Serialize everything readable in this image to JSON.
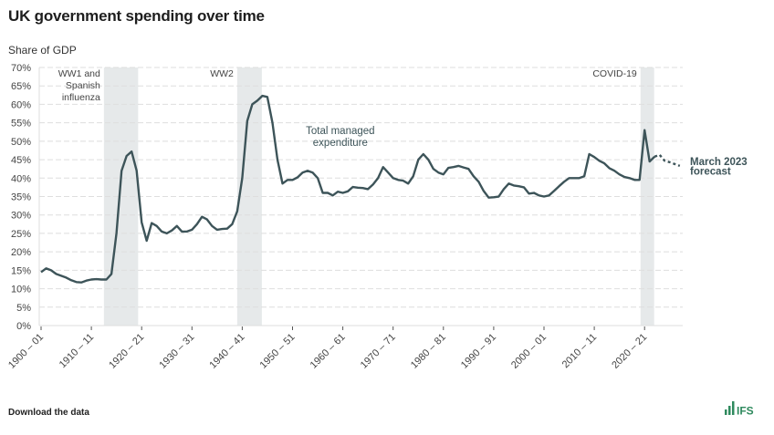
{
  "header": {
    "title": "UK government spending over time"
  },
  "footer": {
    "download_label": "Download the data",
    "logo_text": "IFS"
  },
  "colors": {
    "line": "#3d5459",
    "shade": "#e6e9ea",
    "grid": "#dedede",
    "logo": "#2f8a5e"
  },
  "chart_data": {
    "type": "line",
    "title": "UK government spending over time",
    "ylabel": "Share of GDP",
    "xlabel": "",
    "ylim": [
      0,
      70
    ],
    "y_ticks": [
      "0%",
      "5%",
      "10%",
      "15%",
      "20%",
      "25%",
      "30%",
      "35%",
      "40%",
      "45%",
      "50%",
      "55%",
      "60%",
      "65%",
      "70%"
    ],
    "x_ticks": [
      {
        "year": 1900,
        "label": "1900 – 01"
      },
      {
        "year": 1910,
        "label": "1910 – 11"
      },
      {
        "year": 1920,
        "label": "1920 – 21"
      },
      {
        "year": 1930,
        "label": "1930 – 31"
      },
      {
        "year": 1940,
        "label": "1940 – 41"
      },
      {
        "year": 1950,
        "label": "1950 – 51"
      },
      {
        "year": 1960,
        "label": "1960 – 61"
      },
      {
        "year": 1970,
        "label": "1970 – 71"
      },
      {
        "year": 1980,
        "label": "1980 – 81"
      },
      {
        "year": 1990,
        "label": "1990 – 91"
      },
      {
        "year": 2000,
        "label": "2000 – 01"
      },
      {
        "year": 2010,
        "label": "2010 – 11"
      },
      {
        "year": 2020,
        "label": "2020 – 21"
      }
    ],
    "grid": "horizontal dashed",
    "series": [
      {
        "name": "Total managed expenditure",
        "style": "solid",
        "x_start": 1900,
        "values": [
          14.5,
          15.5,
          15,
          14,
          13.5,
          13,
          12.3,
          11.8,
          11.7,
          12.2,
          12.5,
          12.6,
          12.5,
          12.5,
          14,
          25,
          42,
          46,
          47.2,
          42,
          28,
          23,
          27.8,
          27,
          25.5,
          25,
          25.8,
          27,
          25.5,
          25.5,
          26,
          27.5,
          29.5,
          28.8,
          27,
          26,
          26.2,
          26.3,
          27.5,
          31,
          40,
          55.5,
          60,
          61,
          62.3,
          62,
          55,
          45,
          38.5,
          39.5,
          39.5,
          40.2,
          41.5,
          42,
          41.5,
          40,
          36,
          36,
          35.3,
          36.3,
          36,
          36.4,
          37.6,
          37.4,
          37.3,
          37,
          38.3,
          40,
          43,
          41.5,
          40,
          39.5,
          39.3,
          38.5,
          40.5,
          45,
          46.5,
          45,
          42.5,
          41.5,
          41,
          42.8,
          43,
          43.3,
          42.9,
          42.5,
          40.5,
          39,
          36.5,
          34.7,
          34.8,
          35,
          37,
          38.5,
          38,
          37.8,
          37.5,
          35.8,
          36,
          35.3,
          35,
          35.3,
          36.5,
          37.8,
          39,
          40,
          40,
          40,
          40.5,
          46.5,
          45.7,
          44.7,
          44,
          42.7,
          42,
          41,
          40.3,
          40,
          39.5,
          39.5,
          53,
          44.5,
          45.8
        ]
      },
      {
        "name": "March 2023 forecast",
        "style": "dashed",
        "x_start": 2022,
        "values": [
          45.8,
          46.3,
          44.7,
          44.3,
          43.8,
          43.3
        ]
      }
    ],
    "shaded_periods": [
      {
        "label": "WW1 and Spanish influenza",
        "lines": [
          "WW1 and",
          "Spanish",
          "influenza"
        ],
        "start": 1912.5,
        "end": 1919.3
      },
      {
        "label": "WW2",
        "lines": [
          "WW2"
        ],
        "start": 1939.0,
        "end": 1943.9
      },
      {
        "label": "COVID-19",
        "lines": [
          "COVID-19"
        ],
        "start": 2019.2,
        "end": 2021.9
      }
    ],
    "annotations": [
      {
        "text_lines": [
          "Total managed",
          "expenditure"
        ],
        "x": 1959.5,
        "y": 52
      },
      {
        "text_lines": [
          "March 2023",
          "forecast"
        ],
        "x": 2028.5,
        "y": 44.5
      }
    ]
  }
}
